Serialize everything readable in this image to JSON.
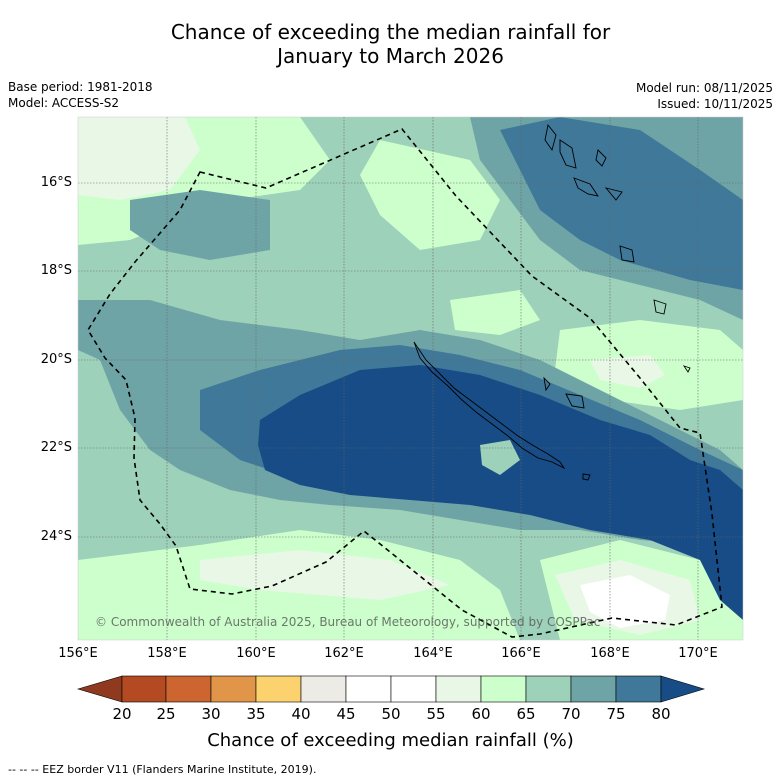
{
  "title_line1": "Chance of exceeding the median rainfall for",
  "title_line2": "January to March 2026",
  "base_period": "Base period: 1981-2018",
  "model": "Model: ACCESS-S2",
  "model_run": "Model run: 08/11/2025",
  "issued": "Issued: 10/11/2025",
  "copyright": "© Commonwealth of Australia 2025, Bureau of Meteorology, supported by COSPPac",
  "map_extent": {
    "lon": [
      156,
      171
    ],
    "lat": [
      -14.5,
      -26.5
    ]
  },
  "lat_labels": [
    "16°S",
    "18°S",
    "20°S",
    "22°S",
    "24°S"
  ],
  "lon_labels": [
    "156°E",
    "158°E",
    "160°E",
    "162°E",
    "164°E",
    "166°E",
    "168°E",
    "170°E"
  ],
  "colorbar": {
    "title": "Chance of exceeding median rainfall (%)",
    "ticks": [
      "20",
      "25",
      "30",
      "35",
      "40",
      "45",
      "50",
      "55",
      "60",
      "65",
      "70",
      "75",
      "80"
    ],
    "colors": [
      "#8f3a1f",
      "#b34a22",
      "#cc6530",
      "#e09548",
      "#fcd26e",
      "#ecebe6",
      "#ffffff",
      "#ffffff",
      "#e9f7e6",
      "#ccffcc",
      "#9dd1b9",
      "#6fa4a6",
      "#3f7898",
      "#174c86"
    ]
  },
  "footer": "--  --  -- EEZ border V11 (Flanders Marine Institute, 2019)."
}
